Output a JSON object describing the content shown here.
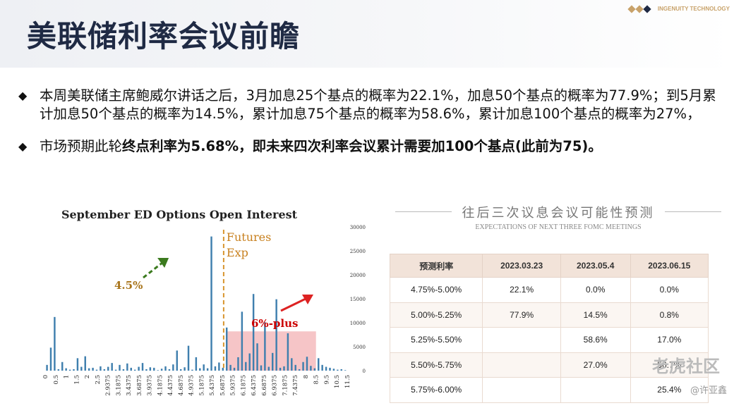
{
  "header": {
    "title": "美联储利率会议前瞻",
    "brand_text": "INGENUITY TECHNOLOGY",
    "dot_colors": [
      "#c8a26a",
      "#c8a26a",
      "#1f2a44"
    ]
  },
  "bullets": [
    {
      "mark": "◆",
      "text": "本周美联储主席鲍威尔讲话之后，3月加息25个基点的概率为22.1%，加息50个基点的概率为77.9%；到5月累计加息50个基点的概率为14.5%，累计加息75个基点的概率为58.6%，累计加息100个基点的概率为27%，"
    },
    {
      "mark": "◆",
      "prefix": "市场预期此轮",
      "strong": "终点利率为5.68%，即未来四次利率会议累计需要加100个基点(此前为75)。"
    }
  ],
  "chart_data": {
    "type": "bar",
    "title": "September ED Options Open Interest",
    "annotations": [
      "4.5%",
      "Futures\nExp",
      "6%-plus"
    ],
    "ylim": [
      0,
      30000
    ],
    "yticks": [
      0,
      5000,
      10000,
      15000,
      20000,
      25000,
      30000
    ],
    "tick_labels": [
      "0",
      "0.5",
      "1",
      "1.5",
      "2",
      "2.5",
      "2.9375",
      "3.1875",
      "3.4375",
      "3.6875",
      "3.9375",
      "4.1875",
      "4.4375",
      "4.6875",
      "4.9375",
      "5.1875",
      "5.4375",
      "5.6875",
      "5.9375",
      "6.1875",
      "6.4375",
      "6.6875",
      "6.9375",
      "7.1875",
      "7.4375",
      "8",
      "8.5",
      "9.5",
      "10.5",
      "11.5"
    ],
    "values": [
      1200,
      4800,
      11200,
      300,
      1800,
      500,
      200,
      300,
      2600,
      800,
      3000,
      500,
      600,
      200,
      900,
      300,
      800,
      1600,
      200,
      1200,
      300,
      1500,
      600,
      200,
      800,
      1600,
      300,
      700,
      600,
      100,
      400,
      900,
      300,
      1300,
      4200,
      300,
      700,
      5200,
      200,
      2800,
      500,
      1300,
      500,
      28000,
      900,
      1700,
      600,
      9000,
      1200,
      600,
      2800,
      12300,
      1800,
      3600,
      16000,
      5700,
      1100,
      10100,
      800,
      3700,
      14900,
      600,
      900,
      7800,
      2600,
      1200,
      300,
      1800,
      2900,
      1000,
      500,
      2600,
      1200,
      800,
      600,
      400,
      200,
      300,
      100
    ],
    "highlight_range": [
      "5.9375",
      "8.5"
    ],
    "grid": false
  },
  "table_panel": {
    "title": "往后三次议息会议可能性预测",
    "subtitle": "EXPECTATIONS OF NEXT THREE FOMC MEETINGS",
    "headers": [
      "预测利率",
      "2023.03.23",
      "2023.05.4",
      "2023.06.15"
    ],
    "rows": [
      [
        "4.75%-5.00%",
        "22.1%",
        "0.0%",
        "0.0%"
      ],
      [
        "5.00%-5.25%",
        "77.9%",
        "14.5%",
        "0.8%"
      ],
      [
        "5.25%-5.50%",
        "",
        "58.6%",
        "17.0%"
      ],
      [
        "5.50%-5.75%",
        "",
        "27.0%",
        "56.7%"
      ],
      [
        "5.75%-6.00%",
        "",
        "",
        "25.4%"
      ]
    ]
  },
  "watermark": {
    "text": "老虎社区",
    "handle": "@许亚鑫"
  }
}
